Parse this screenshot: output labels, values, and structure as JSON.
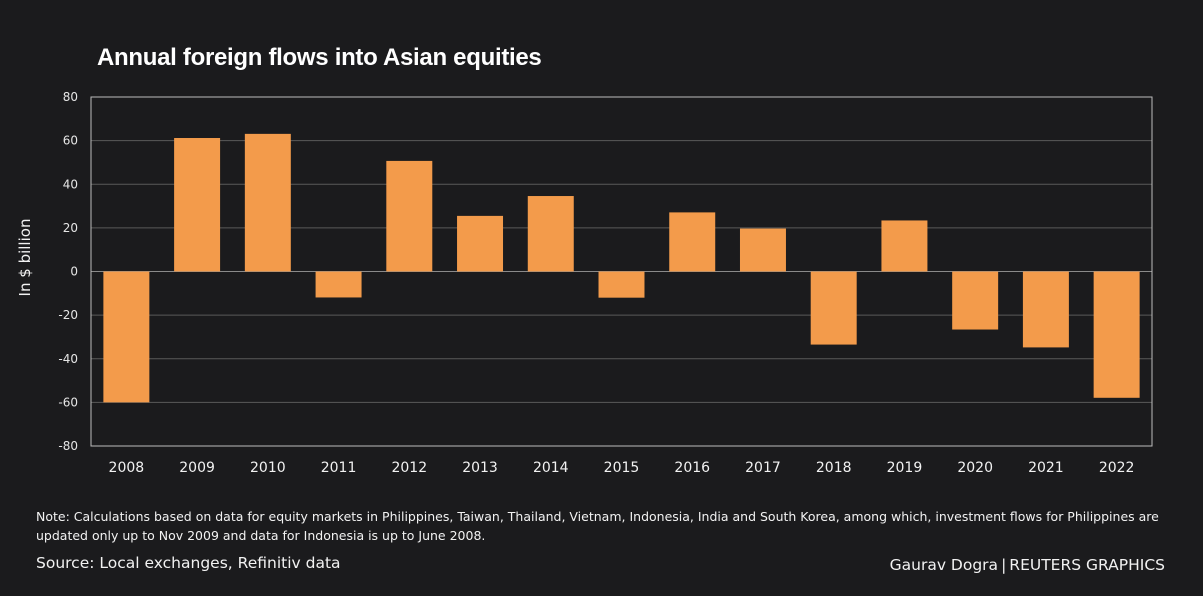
{
  "chart_data": {
    "type": "bar",
    "title": "Annual foreign flows into Asian equities",
    "xlabel": "",
    "ylabel": "In $ billion",
    "ylim": [
      -80,
      80
    ],
    "yticks": [
      80,
      60,
      40,
      20,
      0,
      -20,
      -40,
      -60,
      -80
    ],
    "grid": true,
    "categories": [
      "2008",
      "2009",
      "2010",
      "2011",
      "2012",
      "2013",
      "2014",
      "2015",
      "2016",
      "2017",
      "2018",
      "2019",
      "2020",
      "2021",
      "2022"
    ],
    "values": [
      -60,
      61.2,
      63.1,
      -11.9,
      50.7,
      25.5,
      34.6,
      -12,
      27.1,
      19.7,
      -33.5,
      23.4,
      -26.6,
      -34.8,
      -57.9
    ],
    "bar_color": "#f39b4b",
    "gridline_color": "#5a5a5a"
  },
  "note": "Note: Calculations based on data for equity markets in Philippines, Taiwan, Thailand, Vietnam, Indonesia, India and South Korea, among which, investment flows for Philippines are updated only up to Nov 2009 and data for Indonesia is up to June 2008.",
  "source": "Source: Local exchanges, Refinitiv data",
  "credit": {
    "author": "Gaurav Dogra",
    "separator": "|",
    "org": "REUTERS GRAPHICS"
  }
}
